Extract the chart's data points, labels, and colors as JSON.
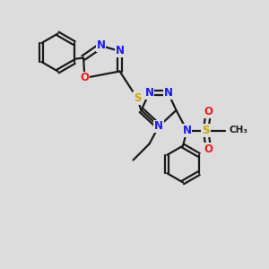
{
  "bg_color": "#dcdcdc",
  "bond_color": "#1a1a1a",
  "bond_width": 1.6,
  "atom_colors": {
    "N": "#1a1aee",
    "O": "#ee1a1a",
    "S": "#ccaa00",
    "C": "#1a1a1a"
  },
  "font_size_atom": 8.5,
  "font_size_label": 7.5
}
